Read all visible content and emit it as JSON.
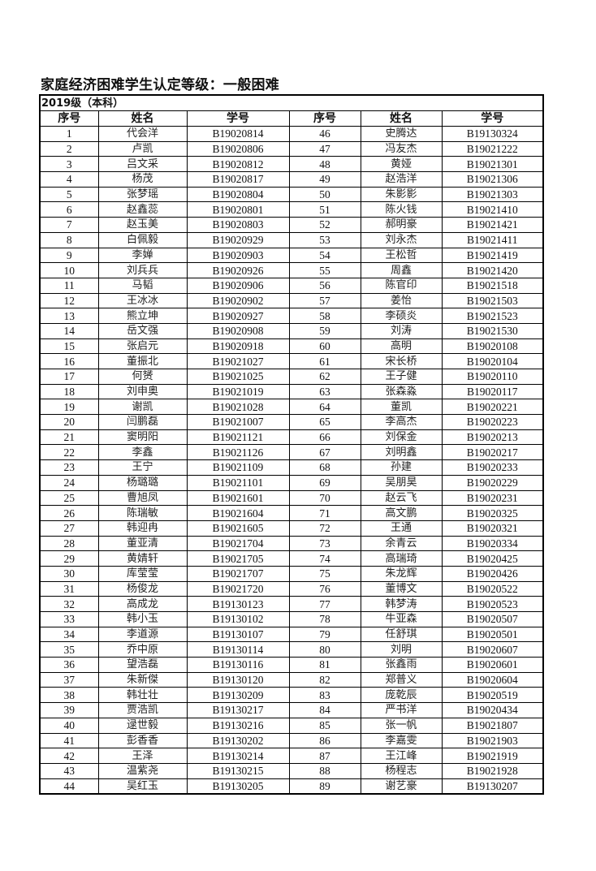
{
  "title": "家庭经济困难学生认定等级：一般困难",
  "section": "2019级（本科）",
  "headers": [
    "序号",
    "姓名",
    "学号",
    "序号",
    "姓名",
    "学号"
  ],
  "left": [
    [
      "1",
      "代会洋",
      "B19020814"
    ],
    [
      "2",
      "卢凯",
      "B19020806"
    ],
    [
      "3",
      "吕文采",
      "B19020812"
    ],
    [
      "4",
      "杨茂",
      "B19020817"
    ],
    [
      "5",
      "张梦瑶",
      "B19020804"
    ],
    [
      "6",
      "赵鑫蕊",
      "B19020801"
    ],
    [
      "7",
      "赵玉美",
      "B19020803"
    ],
    [
      "8",
      "白佩毅",
      "B19020929"
    ],
    [
      "9",
      "李婵",
      "B19020903"
    ],
    [
      "10",
      "刘兵兵",
      "B19020926"
    ],
    [
      "11",
      "马韬",
      "B19020906"
    ],
    [
      "12",
      "王冰冰",
      "B19020902"
    ],
    [
      "13",
      "熊立坤",
      "B19020927"
    ],
    [
      "14",
      "岳文强",
      "B19020908"
    ],
    [
      "15",
      "张启元",
      "B19020918"
    ],
    [
      "16",
      "董振北",
      "B19021027"
    ],
    [
      "17",
      "何赟",
      "B19021025"
    ],
    [
      "18",
      "刘申奥",
      "B19021019"
    ],
    [
      "19",
      "谢凯",
      "B19021028"
    ],
    [
      "20",
      "闫鹏磊",
      "B19021007"
    ],
    [
      "21",
      "窦明阳",
      "B19021121"
    ],
    [
      "22",
      "李鑫",
      "B19021126"
    ],
    [
      "23",
      "王宁",
      "B19021109"
    ],
    [
      "24",
      "杨璐璐",
      "B19021101"
    ],
    [
      "25",
      "曹旭凤",
      "B19021601"
    ],
    [
      "26",
      "陈瑞敏",
      "B19021604"
    ],
    [
      "27",
      "韩迎冉",
      "B19021605"
    ],
    [
      "28",
      "董亚清",
      "B19021704"
    ],
    [
      "29",
      "黄婧轩",
      "B19021705"
    ],
    [
      "30",
      "库莹莹",
      "B19021707"
    ],
    [
      "31",
      "杨俊龙",
      "B19021720"
    ],
    [
      "32",
      "高成龙",
      "B19130123"
    ],
    [
      "33",
      "韩小玉",
      "B19130102"
    ],
    [
      "34",
      "李道源",
      "B19130107"
    ],
    [
      "35",
      "乔中原",
      "B19130114"
    ],
    [
      "36",
      "望浩磊",
      "B19130116"
    ],
    [
      "37",
      "朱新傑",
      "B19130120"
    ],
    [
      "38",
      "韩壮壮",
      "B19130209"
    ],
    [
      "39",
      "贾浩凯",
      "B19130217"
    ],
    [
      "40",
      "逯世毅",
      "B19130216"
    ],
    [
      "41",
      "彭香香",
      "B19130202"
    ],
    [
      "42",
      "王泽",
      "B19130214"
    ],
    [
      "43",
      "温紫尧",
      "B19130215"
    ],
    [
      "44",
      "吴红玉",
      "B19130205"
    ]
  ],
  "right": [
    [
      "46",
      "史腾达",
      "B19130324"
    ],
    [
      "47",
      "冯友杰",
      "B19021222"
    ],
    [
      "48",
      "黄娅",
      "B19021301"
    ],
    [
      "49",
      "赵浩洋",
      "B19021306"
    ],
    [
      "50",
      "朱影影",
      "B19021303"
    ],
    [
      "51",
      "陈火钱",
      "B19021410"
    ],
    [
      "52",
      "郝明豪",
      "B19021421"
    ],
    [
      "53",
      "刘永杰",
      "B19021411"
    ],
    [
      "54",
      "王松哲",
      "B19021419"
    ],
    [
      "55",
      "周鑫",
      "B19021420"
    ],
    [
      "56",
      "陈官印",
      "B19021518"
    ],
    [
      "57",
      "姜怡",
      "B19021503"
    ],
    [
      "58",
      "李硕炎",
      "B19021523"
    ],
    [
      "59",
      "刘涛",
      "B19021530"
    ],
    [
      "60",
      "高明",
      "B19020108"
    ],
    [
      "61",
      "宋长桥",
      "B19020104"
    ],
    [
      "62",
      "王子健",
      "B19020110"
    ],
    [
      "63",
      "张森淼",
      "B19020117"
    ],
    [
      "64",
      "董凯",
      "B19020221"
    ],
    [
      "65",
      "李高杰",
      "B19020223"
    ],
    [
      "66",
      "刘保金",
      "B19020213"
    ],
    [
      "67",
      "刘明鑫",
      "B19020217"
    ],
    [
      "68",
      "孙建",
      "B19020233"
    ],
    [
      "69",
      "吴朋昊",
      "B19020229"
    ],
    [
      "70",
      "赵云飞",
      "B19020231"
    ],
    [
      "71",
      "高文鹏",
      "B19020325"
    ],
    [
      "72",
      "王通",
      "B19020321"
    ],
    [
      "73",
      "余青云",
      "B19020334"
    ],
    [
      "74",
      "高瑞琦",
      "B19020425"
    ],
    [
      "75",
      "朱龙辉",
      "B19020426"
    ],
    [
      "76",
      "董博文",
      "B19020522"
    ],
    [
      "77",
      "韩梦涛",
      "B19020523"
    ],
    [
      "78",
      "牛亚森",
      "B19020507"
    ],
    [
      "79",
      "任舒琪",
      "B19020501"
    ],
    [
      "80",
      "刘明",
      "B19020607"
    ],
    [
      "81",
      "张鑫雨",
      "B19020601"
    ],
    [
      "82",
      "郑普义",
      "B19020604"
    ],
    [
      "83",
      "庞乾辰",
      "B19020519"
    ],
    [
      "84",
      "严书洋",
      "B19020434"
    ],
    [
      "85",
      "张一帆",
      "B19021807"
    ],
    [
      "86",
      "李嘉雯",
      "B19021903"
    ],
    [
      "87",
      "王江峰",
      "B19021919"
    ],
    [
      "88",
      "杨程志",
      "B19021928"
    ],
    [
      "89",
      "谢艺豪",
      "B19130207"
    ]
  ]
}
